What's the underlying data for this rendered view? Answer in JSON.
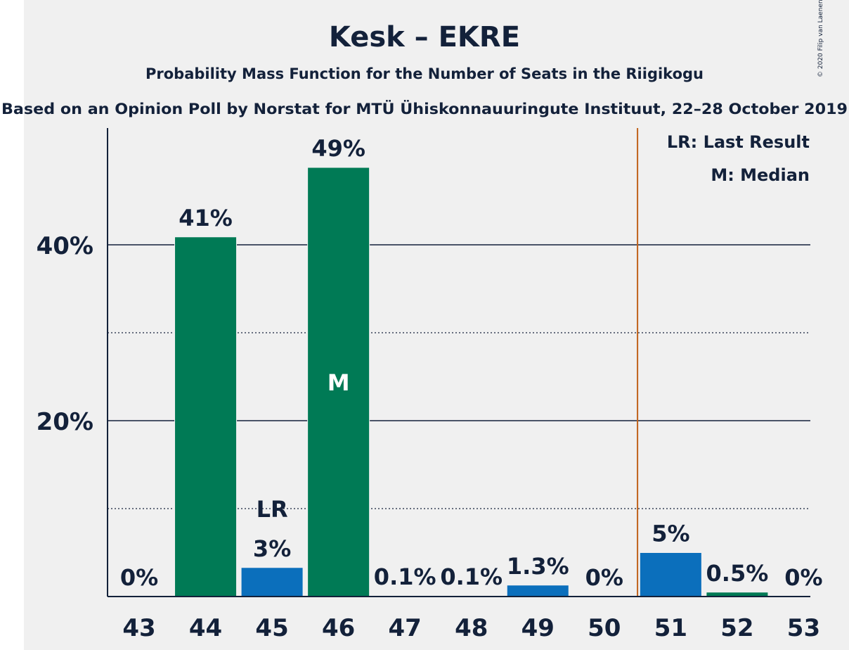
{
  "chart_data": {
    "type": "bar",
    "title": "Kesk – EKRE",
    "subtitle": "Probability Mass Function for the Number of Seats in the Riigikogu",
    "source": "Based on an Opinion Poll by Norstat for MTÜ Ühiskonnauuringute Instituut, 22–28 October 2019",
    "copyright": "© 2020 Filip van Laenen",
    "categories": [
      "43",
      "44",
      "45",
      "46",
      "47",
      "48",
      "49",
      "50",
      "51",
      "52",
      "53"
    ],
    "values": [
      0,
      40.9,
      3.3,
      48.8,
      0.1,
      0.1,
      1.3,
      0,
      5.0,
      0.5,
      0
    ],
    "value_labels": [
      "0%",
      "41%",
      "3%",
      "49%",
      "0.1%",
      "0.1%",
      "1.3%",
      "0%",
      "5%",
      "0.5%",
      "0%"
    ],
    "bar_colors": [
      "#0b6fbc",
      "#007a55",
      "#0b6fbc",
      "#007a55",
      "#007a55",
      "#007a55",
      "#0b6fbc",
      "#007a55",
      "#0b6fbc",
      "#007a55",
      "#007a55"
    ],
    "ylim": [
      0,
      53
    ],
    "yticks_major": [
      20,
      40
    ],
    "ytick_labels": [
      "20%",
      "40%"
    ],
    "yticks_minor": [
      10,
      30
    ],
    "last_result": {
      "category": "45",
      "label": "LR"
    },
    "median": {
      "category": "46",
      "label": "M"
    },
    "majority_line_after": "50",
    "legend": [
      "LR: Last Result",
      "M: Median"
    ],
    "legend_position": "top-right",
    "colors": {
      "green": "#007a55",
      "blue": "#0b6fbc",
      "majority_line": "#c0621a",
      "text": "#13213a",
      "background": "#f0f0f0"
    }
  }
}
